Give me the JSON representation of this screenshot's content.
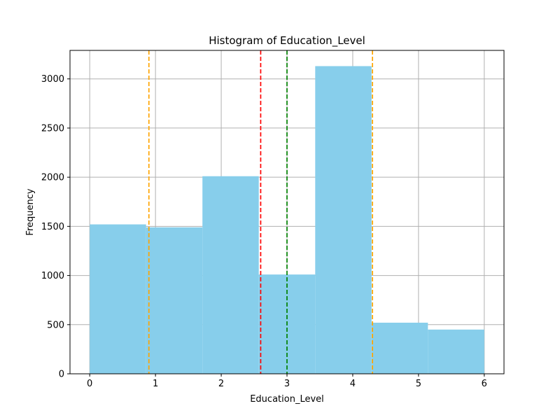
{
  "chart_data": {
    "type": "bar",
    "title": "Histogram of Education_Level",
    "xlabel": "Education_Level",
    "ylabel": "Frequency",
    "xlim": [
      -0.3,
      6.3
    ],
    "ylim": [
      0,
      3290
    ],
    "grid": true,
    "x_ticks": [
      0,
      1,
      2,
      3,
      4,
      5,
      6
    ],
    "y_ticks": [
      0,
      500,
      1000,
      1500,
      2000,
      2500,
      3000
    ],
    "bin_edges": [
      0,
      0.857,
      1.714,
      2.571,
      3.429,
      4.286,
      5.143,
      6.0
    ],
    "values": [
      1520,
      1490,
      2010,
      1010,
      3130,
      520,
      450
    ],
    "bar_color": "#87CEEB",
    "vertical_lines": [
      {
        "x": 0.9,
        "color": "#FFA500",
        "style": "dashed"
      },
      {
        "x": 2.6,
        "color": "#FF0000",
        "style": "dashed"
      },
      {
        "x": 3.0,
        "color": "#008000",
        "style": "dashed"
      },
      {
        "x": 4.3,
        "color": "#FFA500",
        "style": "dashed"
      }
    ]
  }
}
